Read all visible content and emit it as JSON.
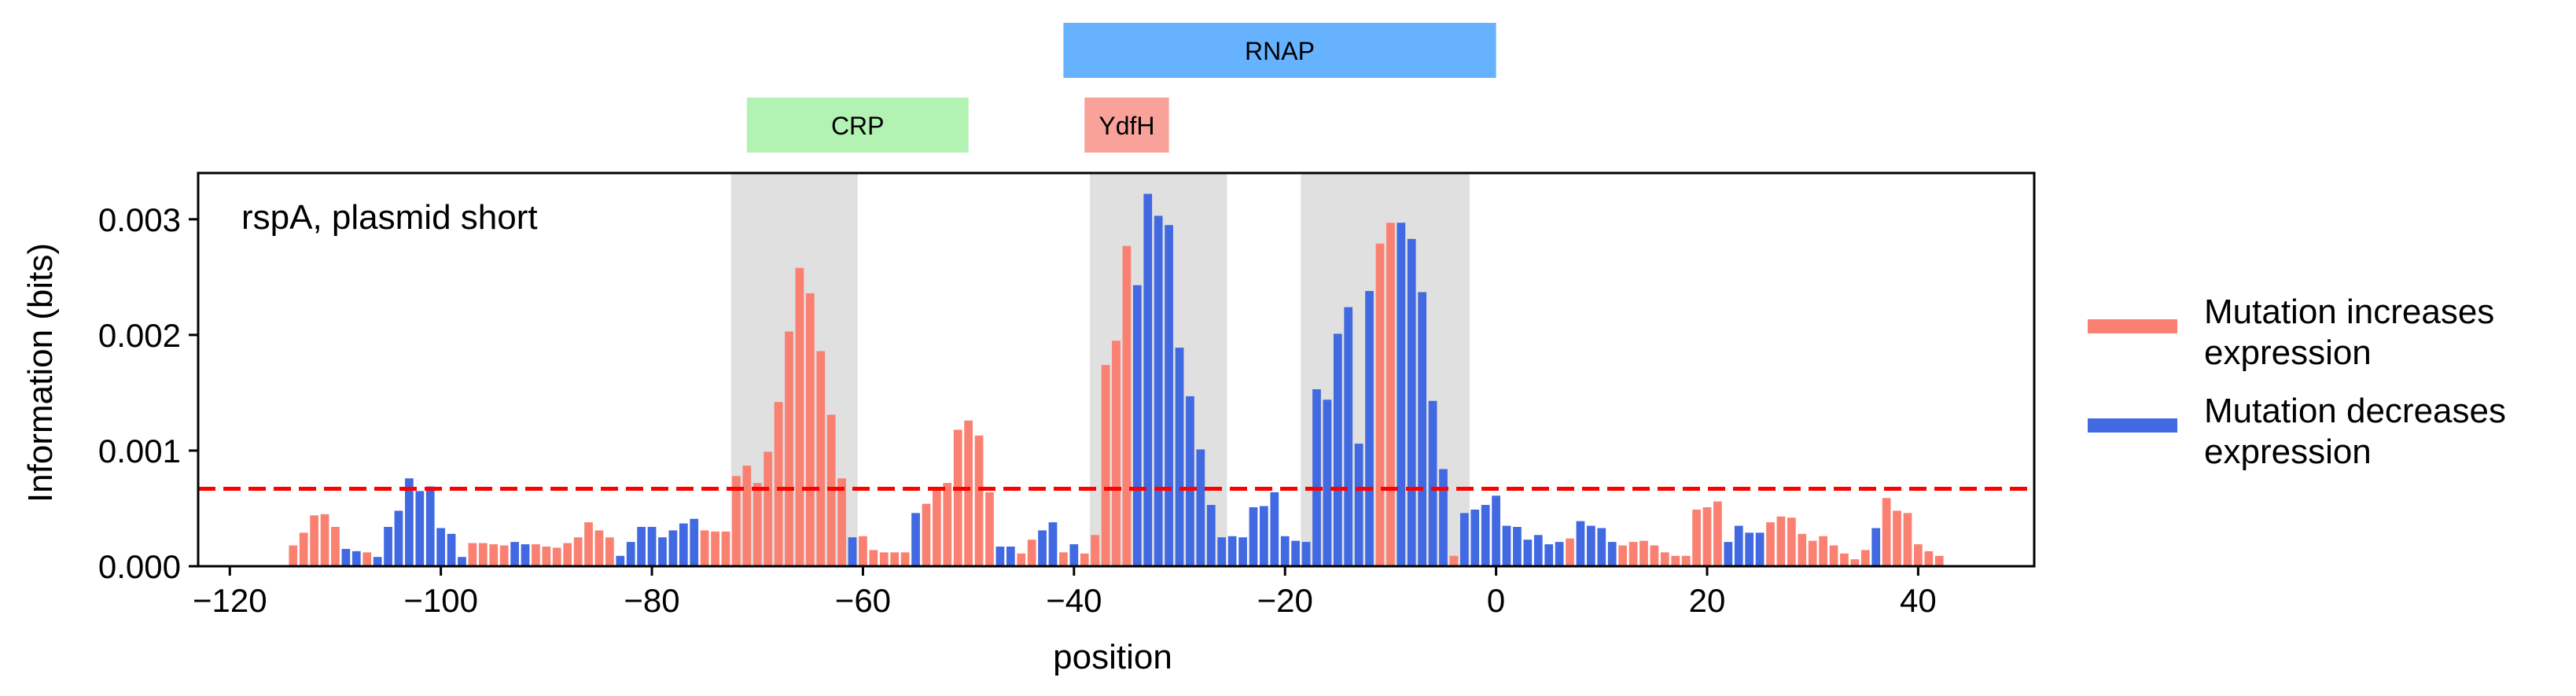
{
  "chart_data": {
    "type": "bar",
    "annotation": "rspA, plasmid short",
    "xlabel": "position",
    "ylabel": "Information (bits)",
    "xlim": [
      -123,
      51
    ],
    "ylim": [
      0,
      0.0034
    ],
    "x_ticks": [
      -120,
      -100,
      -80,
      -60,
      -40,
      -20,
      0,
      20,
      40
    ],
    "x_tick_labels": [
      "−120",
      "−100",
      "−80",
      "−60",
      "−40",
      "−20",
      "0",
      "20",
      "40"
    ],
    "y_ticks": [
      0,
      0.001,
      0.002,
      0.003
    ],
    "y_tick_labels": [
      "0.000",
      "0.001",
      "0.002",
      "0.003"
    ],
    "threshold": 0.00067,
    "threshold_color": "#ff0000",
    "grid": false,
    "legend_placement": "right",
    "legend": [
      {
        "label": "Mutation increases\nexpression",
        "color": "#fa8072"
      },
      {
        "label": "Mutation decreases\nexpression",
        "color": "#4169e1"
      }
    ],
    "shaded_regions": [
      [
        -72,
        -61
      ],
      [
        -38,
        -26
      ],
      [
        -18,
        -3
      ]
    ],
    "binding_sites": [
      {
        "label": "CRP",
        "start": -71,
        "end": -50,
        "row": 1,
        "color": "#b2f2b2"
      },
      {
        "label": "YdfH",
        "start": -39,
        "end": -31,
        "row": 1,
        "color": "#f9a29a"
      },
      {
        "label": "RNAP",
        "start": -41,
        "end": 0,
        "row": 0,
        "color": "#66b2ff"
      }
    ],
    "series": [
      {
        "name": "Mutation increases\nexpression",
        "color": "#fa8072",
        "points": [
          [
            -114,
            0.00018
          ],
          [
            -113,
            0.00029
          ],
          [
            -112,
            0.00044
          ],
          [
            -111,
            0.00045
          ],
          [
            -110,
            0.00034
          ],
          [
            -107,
            0.00012
          ],
          [
            -97,
            0.0002
          ],
          [
            -96,
            0.0002
          ],
          [
            -95,
            0.00019
          ],
          [
            -94,
            0.00018
          ],
          [
            -91,
            0.00019
          ],
          [
            -90,
            0.00017
          ],
          [
            -89,
            0.00016
          ],
          [
            -88,
            0.0002
          ],
          [
            -87,
            0.00025
          ],
          [
            -86,
            0.00038
          ],
          [
            -85,
            0.00031
          ],
          [
            -84,
            0.00025
          ],
          [
            -75,
            0.00031
          ],
          [
            -74,
            0.0003
          ],
          [
            -73,
            0.0003
          ],
          [
            -72,
            0.00078
          ],
          [
            -71,
            0.00087
          ],
          [
            -70,
            0.00072
          ],
          [
            -69,
            0.00099
          ],
          [
            -68,
            0.00142
          ],
          [
            -67,
            0.00203
          ],
          [
            -66,
            0.00258
          ],
          [
            -65,
            0.00236
          ],
          [
            -64,
            0.00186
          ],
          [
            -63,
            0.00131
          ],
          [
            -62,
            0.00076
          ],
          [
            -60,
            0.00026
          ],
          [
            -59,
            0.00014
          ],
          [
            -58,
            0.00012
          ],
          [
            -57,
            0.00012
          ],
          [
            -56,
            0.00012
          ],
          [
            -54,
            0.00054
          ],
          [
            -53,
            0.00066
          ],
          [
            -52,
            0.00072
          ],
          [
            -51,
            0.00118
          ],
          [
            -50,
            0.00126
          ],
          [
            -49,
            0.00113
          ],
          [
            -48,
            0.00064
          ],
          [
            -45,
            0.00011
          ],
          [
            -44,
            0.00023
          ],
          [
            -41,
            0.00012
          ],
          [
            -39,
            0.00011
          ],
          [
            -38,
            0.00027
          ],
          [
            -37,
            0.00174
          ],
          [
            -36,
            0.00195
          ],
          [
            -35,
            0.00277
          ],
          [
            -11,
            0.00279
          ],
          [
            -10,
            0.00297
          ],
          [
            -4,
            9e-05
          ],
          [
            7,
            0.00024
          ],
          [
            12,
            0.00018
          ],
          [
            13,
            0.00021
          ],
          [
            14,
            0.00022
          ],
          [
            15,
            0.00018
          ],
          [
            16,
            0.00012
          ],
          [
            17,
            9e-05
          ],
          [
            18,
            9e-05
          ],
          [
            19,
            0.00049
          ],
          [
            20,
            0.00051
          ],
          [
            21,
            0.00056
          ],
          [
            26,
            0.00038
          ],
          [
            27,
            0.00043
          ],
          [
            28,
            0.00042
          ],
          [
            29,
            0.00028
          ],
          [
            30,
            0.00022
          ],
          [
            31,
            0.00026
          ],
          [
            32,
            0.00018
          ],
          [
            33,
            0.00011
          ],
          [
            34,
            6e-05
          ],
          [
            35,
            0.00014
          ],
          [
            37,
            0.00059
          ],
          [
            38,
            0.00048
          ],
          [
            39,
            0.00046
          ],
          [
            40,
            0.00019
          ],
          [
            41,
            0.00013
          ],
          [
            42,
            9e-05
          ]
        ]
      },
      {
        "name": "Mutation decreases\nexpression",
        "color": "#4169e1",
        "points": [
          [
            -109,
            0.00015
          ],
          [
            -108,
            0.00013
          ],
          [
            -106,
            8e-05
          ],
          [
            -105,
            0.00034
          ],
          [
            -104,
            0.00048
          ],
          [
            -103,
            0.00076
          ],
          [
            -102,
            0.00065
          ],
          [
            -101,
            0.00069
          ],
          [
            -100,
            0.00033
          ],
          [
            -99,
            0.00028
          ],
          [
            -98,
            8e-05
          ],
          [
            -93,
            0.00021
          ],
          [
            -92,
            0.00019
          ],
          [
            -83,
            9e-05
          ],
          [
            -82,
            0.00021
          ],
          [
            -81,
            0.00034
          ],
          [
            -80,
            0.00034
          ],
          [
            -79,
            0.00025
          ],
          [
            -78,
            0.00031
          ],
          [
            -77,
            0.00037
          ],
          [
            -76,
            0.00041
          ],
          [
            -61,
            0.00025
          ],
          [
            -55,
            0.00046
          ],
          [
            -47,
            0.00017
          ],
          [
            -46,
            0.00017
          ],
          [
            -43,
            0.00031
          ],
          [
            -42,
            0.00038
          ],
          [
            -40,
            0.00019
          ],
          [
            -34,
            0.00243
          ],
          [
            -33,
            0.00322
          ],
          [
            -32,
            0.00303
          ],
          [
            -31,
            0.00295
          ],
          [
            -30,
            0.00189
          ],
          [
            -29,
            0.00147
          ],
          [
            -28,
            0.00101
          ],
          [
            -27,
            0.00053
          ],
          [
            -26,
            0.00025
          ],
          [
            -25,
            0.00026
          ],
          [
            -24,
            0.00025
          ],
          [
            -23,
            0.00051
          ],
          [
            -22,
            0.00052
          ],
          [
            -21,
            0.00064
          ],
          [
            -20,
            0.00026
          ],
          [
            -19,
            0.00022
          ],
          [
            -18,
            0.00021
          ],
          [
            -17,
            0.00153
          ],
          [
            -16,
            0.00144
          ],
          [
            -15,
            0.00201
          ],
          [
            -14,
            0.00224
          ],
          [
            -13,
            0.00106
          ],
          [
            -12,
            0.00238
          ],
          [
            -9,
            0.00297
          ],
          [
            -8,
            0.00283
          ],
          [
            -7,
            0.00237
          ],
          [
            -6,
            0.00143
          ],
          [
            -5,
            0.00084
          ],
          [
            -3,
            0.00046
          ],
          [
            -2,
            0.00049
          ],
          [
            -1,
            0.00053
          ],
          [
            0,
            0.00061
          ],
          [
            1,
            0.00035
          ],
          [
            2,
            0.00034
          ],
          [
            3,
            0.00023
          ],
          [
            4,
            0.00027
          ],
          [
            5,
            0.00019
          ],
          [
            6,
            0.00021
          ],
          [
            8,
            0.00039
          ],
          [
            9,
            0.00035
          ],
          [
            10,
            0.00033
          ],
          [
            11,
            0.00021
          ],
          [
            22,
            0.00021
          ],
          [
            23,
            0.00035
          ],
          [
            24,
            0.00029
          ],
          [
            25,
            0.00029
          ],
          [
            36,
            0.00033
          ]
        ]
      }
    ]
  }
}
